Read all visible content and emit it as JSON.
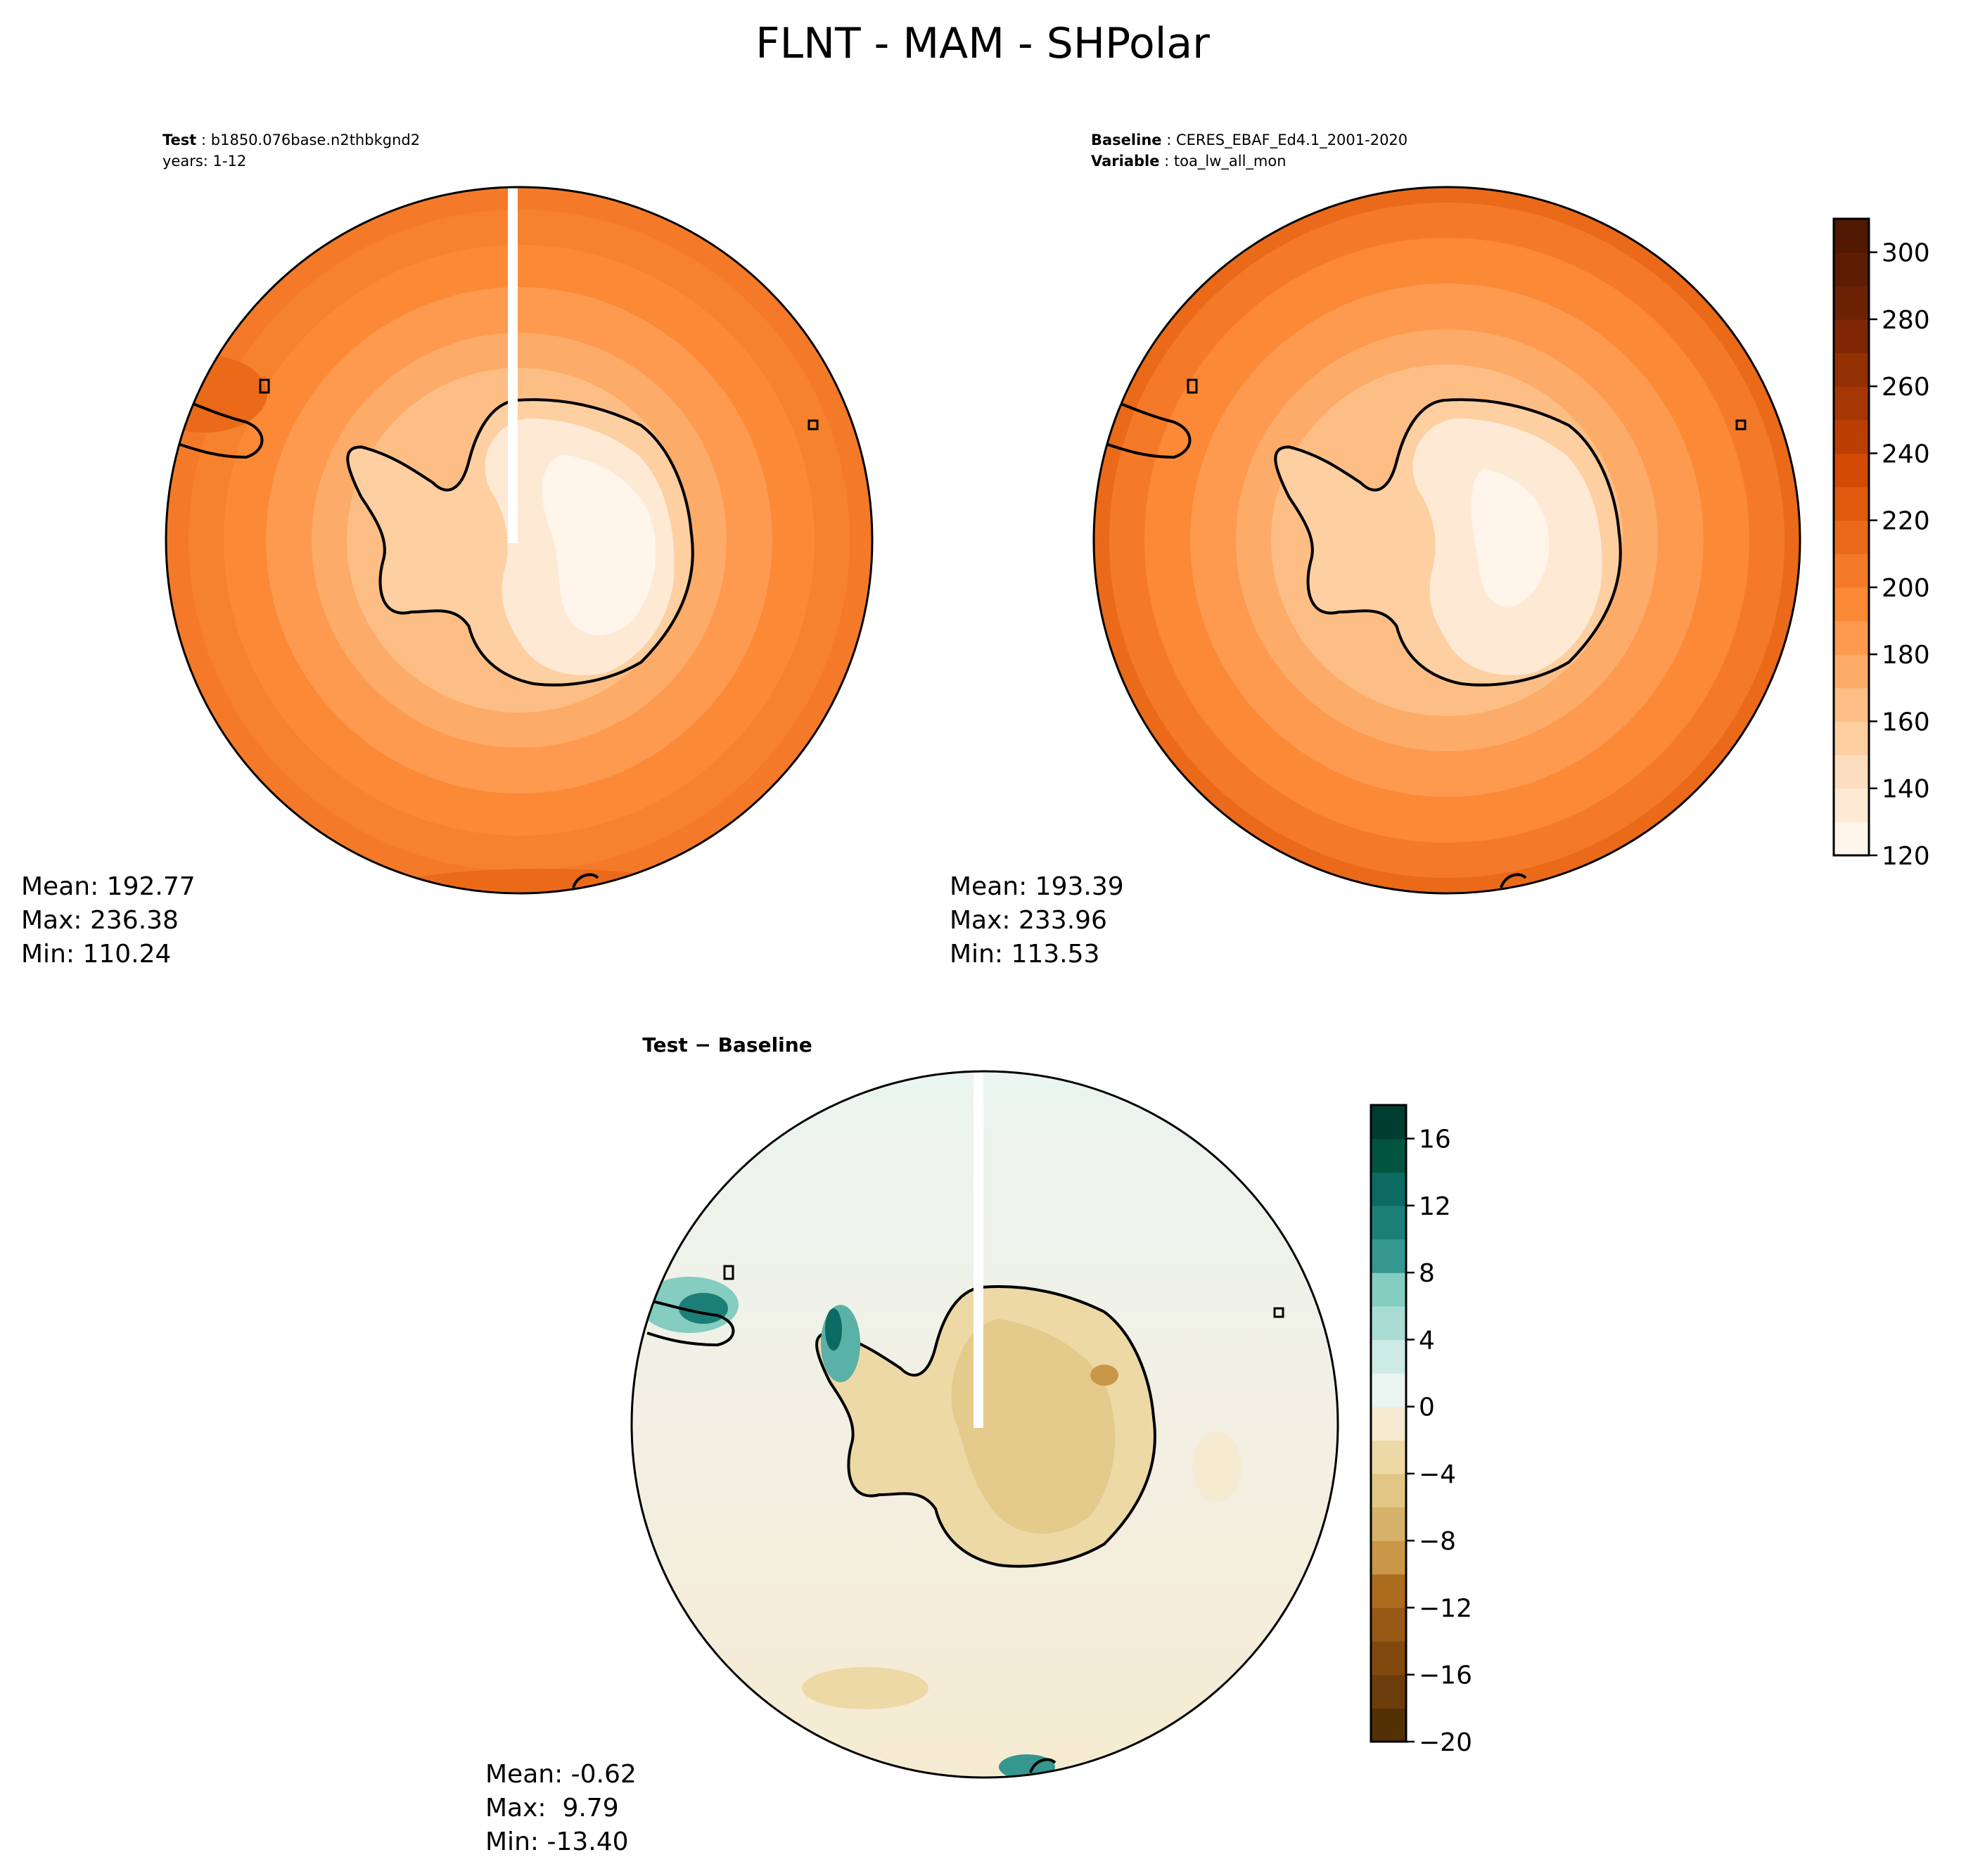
{
  "chart_data": [
    {
      "type": "heatmap",
      "panel": "test",
      "projection": "south-polar-stereographic",
      "title_label": "Test",
      "title_value": "b1850.076base.n2thbkgnd2",
      "title_line2": "years: 1-12",
      "stats": {
        "mean": "Mean: 192.77",
        "max": "Max: 236.38",
        "min": "Min: 110.24"
      },
      "value_range": [
        110.24,
        236.38
      ],
      "colormap": "Oranges"
    },
    {
      "type": "heatmap",
      "panel": "baseline",
      "projection": "south-polar-stereographic",
      "title_label": "Baseline",
      "title_value": "CERES_EBAF_Ed4.1_2001-2020",
      "title_label2": "Variable",
      "title_value2": "toa_lw_all_mon",
      "stats": {
        "mean": "Mean: 193.39",
        "max": "Max: 233.96",
        "min": "Min: 113.53"
      },
      "value_range": [
        113.53,
        233.96
      ],
      "colormap": "Oranges",
      "colorbar": {
        "min": 120,
        "max": 310,
        "step": 10,
        "ticks": [
          120,
          140,
          160,
          180,
          200,
          220,
          240,
          260,
          280,
          300
        ],
        "tick_labels": [
          "120",
          "140",
          "160",
          "180",
          "200",
          "220",
          "240",
          "260",
          "280",
          "300"
        ]
      }
    },
    {
      "type": "heatmap",
      "panel": "difference",
      "projection": "south-polar-stereographic",
      "title": "Test − Baseline",
      "stats": {
        "mean": "Mean: -0.62",
        "max": "Max:  9.79",
        "min": "Min: -13.40"
      },
      "value_range": [
        -13.4,
        9.79
      ],
      "colormap": "BrBG",
      "colorbar": {
        "min": -20,
        "max": 18,
        "step": 2,
        "ticks": [
          -20,
          -16,
          -12,
          -8,
          -4,
          0,
          4,
          8,
          12,
          16
        ],
        "tick_labels": [
          "−20",
          "−16",
          "−12",
          "−8",
          "−4",
          "0",
          "4",
          "8",
          "12",
          "16"
        ]
      }
    }
  ],
  "figure": {
    "suptitle": "FLNT - MAM - SHPolar"
  },
  "colors": {
    "oranges": [
      "#fff5eb",
      "#fee9d5",
      "#fdddbf",
      "#fdcfa1",
      "#fdbe85",
      "#fdab68",
      "#fd9a4f",
      "#fb8936",
      "#f47a29",
      "#ea6a1a",
      "#e05a0e",
      "#d24a05",
      "#bb3f03",
      "#a63603",
      "#933003",
      "#7f2704",
      "#6b2204",
      "#5e1c03",
      "#501802"
    ],
    "brbg": [
      "#543005",
      "#6b3d0a",
      "#81490e",
      "#975a16",
      "#ac6c1d",
      "#bd8330",
      "#c99748",
      "#d6b169",
      "#e1c685",
      "#edd9a6",
      "#f5ebd1",
      "#eaf4f0",
      "#cdebe5",
      "#a9ddd4",
      "#84cdc0",
      "#5ab1a7",
      "#35978f",
      "#1c7f77",
      "#0c6a62",
      "#01543e",
      "#003c30"
    ],
    "land_light": "#fff6ee",
    "coast": "#000000"
  }
}
